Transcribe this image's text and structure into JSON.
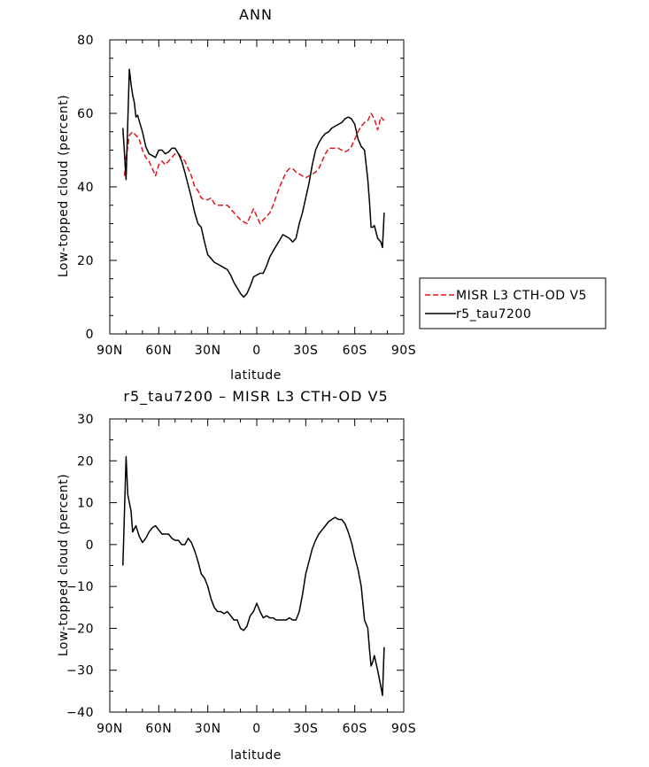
{
  "chart_data": [
    {
      "type": "line",
      "title": "ANN",
      "xlabel": "latitude",
      "ylabel": "Low-topped cloud (percent)",
      "xlim": [
        90,
        -90
      ],
      "ylim": [
        0,
        80
      ],
      "x_ticks": [
        {
          "v": 90,
          "label": "90N"
        },
        {
          "v": 60,
          "label": "60N"
        },
        {
          "v": 30,
          "label": "30N"
        },
        {
          "v": 0,
          "label": "0"
        },
        {
          "v": -30,
          "label": "30S"
        },
        {
          "v": -60,
          "label": "60S"
        },
        {
          "v": -90,
          "label": "90S"
        }
      ],
      "y_ticks": [
        0,
        20,
        40,
        60,
        80
      ],
      "legend": {
        "placement": "right"
      },
      "series": [
        {
          "name": "MISR L3 CTH-OD V5",
          "color": "#e0141e",
          "dash": "dashed",
          "x": [
            81,
            80,
            78,
            76,
            74,
            72,
            70,
            68,
            66,
            64,
            62,
            60,
            58,
            56,
            54,
            52,
            50,
            48,
            46,
            44,
            42,
            40,
            38,
            36,
            34,
            32,
            30,
            28,
            26,
            24,
            22,
            20,
            18,
            16,
            14,
            12,
            10,
            8,
            6,
            4,
            2,
            0,
            -2,
            -4,
            -6,
            -8,
            -10,
            -12,
            -14,
            -16,
            -18,
            -20,
            -22,
            -24,
            -26,
            -28,
            -30,
            -32,
            -34,
            -36,
            -38,
            -40,
            -42,
            -44,
            -46,
            -48,
            -50,
            -52,
            -54,
            -56,
            -58,
            -60,
            -62,
            -64,
            -66,
            -68,
            -70,
            -72,
            -74,
            -76,
            -78
          ],
          "y": [
            43,
            48,
            54,
            55,
            54,
            53,
            50,
            48,
            47,
            45,
            43,
            46,
            47,
            46,
            47,
            48,
            49,
            49,
            48,
            47,
            45,
            43,
            40,
            39,
            37,
            36.5,
            36.5,
            37,
            35.5,
            35,
            35,
            35,
            35,
            34,
            33,
            32,
            31,
            30.5,
            30,
            32,
            34,
            32,
            30,
            31,
            32,
            33,
            35,
            37.5,
            40,
            42,
            44,
            45,
            45,
            44,
            43.5,
            43,
            42.5,
            43,
            43.5,
            44,
            45,
            47,
            49,
            50.5,
            50.5,
            50.5,
            50.5,
            50,
            49.5,
            50,
            51,
            53,
            55,
            56.5,
            57.5,
            58,
            60,
            58.5,
            55.5,
            59,
            58
          ]
        },
        {
          "name": "r5_tau7200",
          "color": "#000000",
          "dash": "solid",
          "x": [
            82,
            80,
            78,
            77,
            76,
            75,
            74,
            73,
            72,
            70,
            68,
            66,
            64,
            62,
            60,
            58,
            56,
            54,
            52,
            50,
            48,
            46,
            44,
            42,
            40,
            38,
            36,
            34,
            32,
            30,
            28,
            26,
            24,
            22,
            20,
            18,
            16,
            14,
            12,
            10,
            8,
            6,
            4,
            2,
            0,
            -2,
            -4,
            -6,
            -8,
            -10,
            -12,
            -14,
            -16,
            -18,
            -20,
            -22,
            -24,
            -26,
            -28,
            -30,
            -32,
            -34,
            -36,
            -38,
            -40,
            -42,
            -44,
            -46,
            -48,
            -50,
            -52,
            -54,
            -56,
            -58,
            -60,
            -62,
            -64,
            -66,
            -68,
            -69,
            -70,
            -71,
            -72,
            -74,
            -76,
            -77,
            -78
          ],
          "y": [
            56,
            42,
            72,
            68,
            65,
            63,
            59,
            59.5,
            58,
            55,
            51,
            49,
            48.5,
            48,
            50,
            50,
            49,
            49.5,
            50.5,
            50.5,
            49,
            47,
            44,
            40.5,
            37,
            33,
            30,
            29,
            25,
            21.5,
            20.5,
            19.5,
            19,
            18.5,
            18,
            17.5,
            16,
            14,
            12.5,
            11,
            10,
            11,
            13,
            15.5,
            16,
            16.5,
            16.5,
            18.5,
            21,
            22.5,
            24,
            25.5,
            27,
            26.5,
            26,
            25,
            26,
            30,
            33,
            37,
            41,
            46,
            50,
            52,
            53.5,
            54.5,
            55,
            56,
            56.5,
            57,
            57.5,
            58.5,
            59,
            58.5,
            57,
            53,
            51,
            50,
            42,
            36,
            29,
            29,
            29.5,
            26,
            25,
            23.5,
            33
          ]
        }
      ]
    },
    {
      "type": "line",
      "title": "r5_tau7200 – MISR L3 CTH-OD V5",
      "xlabel": "latitude",
      "ylabel": "Low-topped cloud (percent)",
      "xlim": [
        90,
        -90
      ],
      "ylim": [
        -40,
        30
      ],
      "x_ticks": [
        {
          "v": 90,
          "label": "90N"
        },
        {
          "v": 60,
          "label": "60N"
        },
        {
          "v": 30,
          "label": "30N"
        },
        {
          "v": 0,
          "label": "0"
        },
        {
          "v": -30,
          "label": "30S"
        },
        {
          "v": -60,
          "label": "60S"
        },
        {
          "v": -90,
          "label": "90S"
        }
      ],
      "y_ticks": [
        -40,
        -30,
        -20,
        -10,
        0,
        10,
        20,
        30
      ],
      "series": [
        {
          "color": "#000000",
          "dash": "solid",
          "x": [
            82,
            81,
            80,
            79,
            78,
            77,
            76,
            74,
            72,
            70,
            68,
            66,
            64,
            62,
            60,
            58,
            56,
            54,
            52,
            50,
            48,
            46,
            44,
            42,
            40,
            38,
            36,
            34,
            32,
            30,
            28,
            26,
            24,
            22,
            20,
            18,
            16,
            14,
            12,
            10,
            8,
            6,
            4,
            2,
            0,
            -2,
            -4,
            -6,
            -8,
            -10,
            -12,
            -14,
            -16,
            -18,
            -20,
            -22,
            -24,
            -26,
            -28,
            -30,
            -32,
            -34,
            -36,
            -38,
            -40,
            -42,
            -44,
            -46,
            -48,
            -50,
            -52,
            -54,
            -56,
            -58,
            -60,
            -62,
            -64,
            -66,
            -68,
            -69,
            -70,
            -71,
            -72,
            -74,
            -76,
            -77,
            -78
          ],
          "y": [
            -5,
            8,
            21,
            12,
            10,
            8,
            3,
            4.5,
            2,
            0.5,
            1.5,
            3,
            4,
            4.5,
            3.5,
            2.5,
            2.5,
            2.5,
            1.5,
            1,
            1,
            0,
            0,
            1.5,
            0.5,
            -1.5,
            -4,
            -7,
            -8,
            -10,
            -13,
            -15,
            -16,
            -16,
            -16.5,
            -16,
            -17,
            -18,
            -18,
            -20,
            -20.5,
            -19.5,
            -17,
            -16,
            -14,
            -16,
            -17.5,
            -17,
            -17.5,
            -17.5,
            -18,
            -18,
            -18,
            -18,
            -17.5,
            -18,
            -18,
            -16,
            -12,
            -7,
            -4,
            -1,
            1,
            2.5,
            3.5,
            4.5,
            5.5,
            6,
            6.5,
            6,
            6,
            5,
            3,
            0.5,
            -3,
            -6,
            -10,
            -18,
            -20,
            -25,
            -29,
            -28,
            -26.5,
            -30,
            -34,
            -36,
            -24.5
          ]
        }
      ]
    }
  ],
  "legend_items": [
    {
      "label": "MISR L3 CTH-OD V5"
    },
    {
      "label": "r5_tau7200"
    }
  ]
}
